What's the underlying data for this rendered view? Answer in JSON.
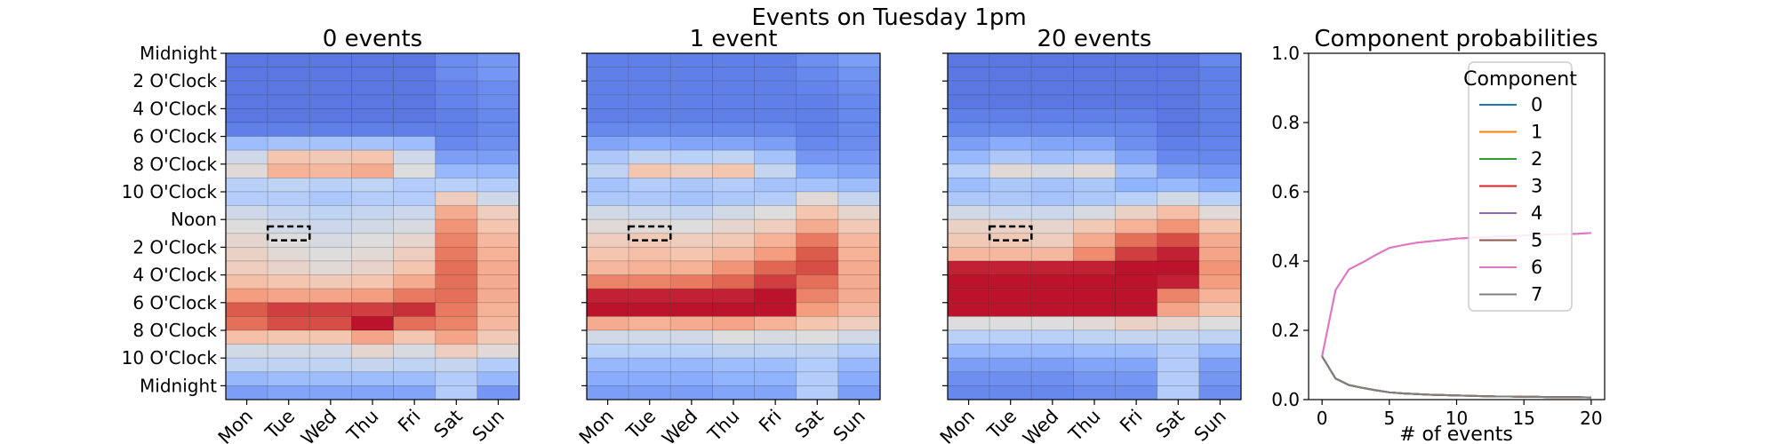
{
  "suptitle": "Events on Tuesday 1pm",
  "chart_data": [
    {
      "type": "heatmap",
      "title": "0 events",
      "x_categories": [
        "Mon",
        "Tue",
        "Wed",
        "Thu",
        "Fri",
        "Sat",
        "Sun"
      ],
      "y_tick_labels": [
        "Midnight",
        "2 O'Clock",
        "4 O'Clock",
        "6 O'Clock",
        "8 O'Clock",
        "10 O'Clock",
        "Noon",
        "2 O'Clock",
        "4 O'Clock",
        "6 O'Clock",
        "8 O'Clock",
        "10 O'Clock",
        "Midnight"
      ],
      "colormap": "coolwarm",
      "highlight": {
        "day": "Tue",
        "hour": 13
      },
      "values": [
        [
          0.1,
          0.1,
          0.1,
          0.1,
          0.1,
          0.15,
          0.18
        ],
        [
          0.1,
          0.1,
          0.1,
          0.1,
          0.1,
          0.15,
          0.18
        ],
        [
          0.1,
          0.1,
          0.1,
          0.1,
          0.1,
          0.13,
          0.15
        ],
        [
          0.1,
          0.1,
          0.1,
          0.1,
          0.1,
          0.13,
          0.15
        ],
        [
          0.1,
          0.1,
          0.1,
          0.1,
          0.1,
          0.12,
          0.14
        ],
        [
          0.12,
          0.12,
          0.12,
          0.12,
          0.12,
          0.12,
          0.14
        ],
        [
          0.3,
          0.32,
          0.32,
          0.32,
          0.3,
          0.14,
          0.16
        ],
        [
          0.45,
          0.62,
          0.6,
          0.62,
          0.45,
          0.2,
          0.2
        ],
        [
          0.52,
          0.68,
          0.66,
          0.7,
          0.5,
          0.28,
          0.28
        ],
        [
          0.38,
          0.4,
          0.38,
          0.4,
          0.36,
          0.38,
          0.36
        ],
        [
          0.36,
          0.36,
          0.34,
          0.36,
          0.36,
          0.58,
          0.45
        ],
        [
          0.45,
          0.42,
          0.4,
          0.42,
          0.44,
          0.7,
          0.58
        ],
        [
          0.5,
          0.46,
          0.44,
          0.46,
          0.48,
          0.76,
          0.62
        ],
        [
          0.54,
          0.5,
          0.48,
          0.5,
          0.54,
          0.8,
          0.66
        ],
        [
          0.56,
          0.52,
          0.5,
          0.52,
          0.58,
          0.82,
          0.68
        ],
        [
          0.58,
          0.55,
          0.52,
          0.55,
          0.62,
          0.84,
          0.7
        ],
        [
          0.64,
          0.62,
          0.6,
          0.62,
          0.7,
          0.84,
          0.7
        ],
        [
          0.74,
          0.72,
          0.72,
          0.74,
          0.82,
          0.84,
          0.7
        ],
        [
          0.88,
          0.92,
          0.92,
          0.92,
          0.94,
          0.82,
          0.68
        ],
        [
          0.84,
          0.9,
          0.9,
          0.98,
          0.84,
          0.8,
          0.66
        ],
        [
          0.64,
          0.62,
          0.62,
          0.72,
          0.62,
          0.72,
          0.6
        ],
        [
          0.46,
          0.46,
          0.46,
          0.54,
          0.48,
          0.58,
          0.52
        ],
        [
          0.4,
          0.4,
          0.4,
          0.42,
          0.4,
          0.42,
          0.36
        ],
        [
          0.28,
          0.3,
          0.3,
          0.3,
          0.3,
          0.36,
          0.28
        ],
        [
          0.2,
          0.22,
          0.22,
          0.22,
          0.22,
          0.36,
          0.18
        ]
      ]
    },
    {
      "type": "heatmap",
      "title": "1 event",
      "x_categories": [
        "Mon",
        "Tue",
        "Wed",
        "Thu",
        "Fri",
        "Sat",
        "Sun"
      ],
      "y_tick_labels": [],
      "colormap": "coolwarm",
      "highlight": {
        "day": "Tue",
        "hour": 13
      },
      "values": [
        [
          0.12,
          0.12,
          0.12,
          0.12,
          0.12,
          0.16,
          0.2
        ],
        [
          0.12,
          0.12,
          0.12,
          0.12,
          0.12,
          0.14,
          0.17
        ],
        [
          0.12,
          0.12,
          0.12,
          0.12,
          0.12,
          0.13,
          0.15
        ],
        [
          0.12,
          0.12,
          0.12,
          0.12,
          0.12,
          0.12,
          0.14
        ],
        [
          0.12,
          0.12,
          0.12,
          0.12,
          0.12,
          0.12,
          0.14
        ],
        [
          0.14,
          0.14,
          0.14,
          0.14,
          0.14,
          0.12,
          0.14
        ],
        [
          0.22,
          0.24,
          0.22,
          0.22,
          0.2,
          0.14,
          0.15
        ],
        [
          0.34,
          0.4,
          0.38,
          0.4,
          0.32,
          0.18,
          0.18
        ],
        [
          0.4,
          0.62,
          0.58,
          0.62,
          0.42,
          0.24,
          0.22
        ],
        [
          0.32,
          0.36,
          0.34,
          0.36,
          0.32,
          0.32,
          0.3
        ],
        [
          0.34,
          0.34,
          0.32,
          0.34,
          0.36,
          0.52,
          0.42
        ],
        [
          0.46,
          0.44,
          0.42,
          0.46,
          0.5,
          0.62,
          0.54
        ],
        [
          0.52,
          0.52,
          0.5,
          0.54,
          0.58,
          0.7,
          0.6
        ],
        [
          0.58,
          0.6,
          0.58,
          0.6,
          0.68,
          0.82,
          0.66
        ],
        [
          0.62,
          0.64,
          0.62,
          0.66,
          0.74,
          0.88,
          0.68
        ],
        [
          0.66,
          0.68,
          0.68,
          0.76,
          0.86,
          0.9,
          0.7
        ],
        [
          0.8,
          0.8,
          0.82,
          0.86,
          0.92,
          0.84,
          0.7
        ],
        [
          0.96,
          0.96,
          0.96,
          0.96,
          0.98,
          0.8,
          0.7
        ],
        [
          0.98,
          0.98,
          0.98,
          0.98,
          0.98,
          0.74,
          0.66
        ],
        [
          0.7,
          0.68,
          0.7,
          0.72,
          0.68,
          0.62,
          0.58
        ],
        [
          0.46,
          0.46,
          0.46,
          0.5,
          0.48,
          0.5,
          0.46
        ],
        [
          0.38,
          0.38,
          0.38,
          0.4,
          0.4,
          0.4,
          0.36
        ],
        [
          0.28,
          0.28,
          0.28,
          0.3,
          0.3,
          0.36,
          0.28
        ],
        [
          0.24,
          0.24,
          0.24,
          0.26,
          0.26,
          0.36,
          0.24
        ],
        [
          0.2,
          0.2,
          0.2,
          0.22,
          0.22,
          0.36,
          0.2
        ]
      ]
    },
    {
      "type": "heatmap",
      "title": "20 events",
      "x_categories": [
        "Mon",
        "Tue",
        "Wed",
        "Thu",
        "Fri",
        "Sat",
        "Sun"
      ],
      "y_tick_labels": [],
      "colormap": "coolwarm",
      "highlight": {
        "day": "Tue",
        "hour": 13
      },
      "values": [
        [
          0.1,
          0.1,
          0.1,
          0.1,
          0.1,
          0.1,
          0.14
        ],
        [
          0.1,
          0.1,
          0.1,
          0.1,
          0.1,
          0.1,
          0.12
        ],
        [
          0.1,
          0.1,
          0.1,
          0.1,
          0.1,
          0.1,
          0.12
        ],
        [
          0.1,
          0.1,
          0.1,
          0.1,
          0.1,
          0.1,
          0.12
        ],
        [
          0.12,
          0.12,
          0.12,
          0.12,
          0.12,
          0.1,
          0.12
        ],
        [
          0.14,
          0.14,
          0.14,
          0.14,
          0.14,
          0.1,
          0.12
        ],
        [
          0.2,
          0.24,
          0.22,
          0.22,
          0.16,
          0.12,
          0.13
        ],
        [
          0.28,
          0.34,
          0.3,
          0.32,
          0.22,
          0.14,
          0.14
        ],
        [
          0.38,
          0.52,
          0.48,
          0.52,
          0.32,
          0.2,
          0.18
        ],
        [
          0.3,
          0.34,
          0.32,
          0.34,
          0.26,
          0.28,
          0.24
        ],
        [
          0.34,
          0.34,
          0.32,
          0.34,
          0.38,
          0.46,
          0.38
        ],
        [
          0.46,
          0.44,
          0.44,
          0.48,
          0.56,
          0.64,
          0.52
        ],
        [
          0.56,
          0.56,
          0.54,
          0.6,
          0.68,
          0.76,
          0.62
        ],
        [
          0.6,
          0.6,
          0.58,
          0.7,
          0.84,
          0.9,
          0.7
        ],
        [
          0.66,
          0.66,
          0.66,
          0.78,
          0.92,
          0.96,
          0.72
        ],
        [
          0.96,
          0.96,
          0.96,
          0.96,
          0.98,
          0.98,
          0.76
        ],
        [
          0.98,
          0.98,
          0.98,
          0.98,
          0.98,
          0.96,
          0.74
        ],
        [
          0.98,
          0.98,
          0.98,
          0.98,
          0.98,
          0.8,
          0.68
        ],
        [
          0.98,
          0.98,
          0.98,
          0.98,
          0.98,
          0.72,
          0.62
        ],
        [
          0.5,
          0.5,
          0.5,
          0.52,
          0.56,
          0.54,
          0.5
        ],
        [
          0.38,
          0.38,
          0.38,
          0.4,
          0.42,
          0.42,
          0.4
        ],
        [
          0.28,
          0.28,
          0.28,
          0.3,
          0.3,
          0.36,
          0.28
        ],
        [
          0.2,
          0.2,
          0.2,
          0.22,
          0.22,
          0.36,
          0.2
        ],
        [
          0.16,
          0.16,
          0.16,
          0.18,
          0.18,
          0.36,
          0.18
        ],
        [
          0.14,
          0.14,
          0.14,
          0.16,
          0.16,
          0.36,
          0.16
        ]
      ]
    },
    {
      "type": "line",
      "title": "Component probabilities",
      "xlabel": "# of events",
      "ylabel": "",
      "xlim": [
        -1,
        21
      ],
      "ylim": [
        0,
        1
      ],
      "x_ticks": [
        0,
        5,
        10,
        15,
        20
      ],
      "y_ticks": [
        0.0,
        0.2,
        0.4,
        0.6,
        0.8,
        1.0
      ],
      "legend": {
        "title": "Component",
        "position": "upper right"
      },
      "x": [
        0,
        1,
        2,
        3,
        4,
        5,
        6,
        7,
        8,
        9,
        10,
        11,
        12,
        13,
        14,
        15,
        16,
        17,
        18,
        19,
        20
      ],
      "series": [
        {
          "name": "0",
          "color": "#1f77b4",
          "values": [
            0.125,
            0.061,
            0.042,
            0.034,
            0.027,
            0.021,
            0.018,
            0.016,
            0.014,
            0.013,
            0.012,
            0.011,
            0.01,
            0.009,
            0.009,
            0.008,
            0.008,
            0.007,
            0.007,
            0.007,
            0.006
          ]
        },
        {
          "name": "1",
          "color": "#ff7f0e",
          "values": [
            0.125,
            0.061,
            0.042,
            0.034,
            0.027,
            0.021,
            0.018,
            0.016,
            0.014,
            0.013,
            0.012,
            0.011,
            0.01,
            0.009,
            0.009,
            0.008,
            0.008,
            0.007,
            0.007,
            0.007,
            0.006
          ]
        },
        {
          "name": "2",
          "color": "#2ca02c",
          "values": [
            0.125,
            0.061,
            0.042,
            0.034,
            0.027,
            0.021,
            0.018,
            0.016,
            0.014,
            0.013,
            0.012,
            0.011,
            0.01,
            0.009,
            0.009,
            0.008,
            0.008,
            0.007,
            0.007,
            0.007,
            0.006
          ]
        },
        {
          "name": "3",
          "color": "#d62728",
          "values": [
            0.125,
            0.061,
            0.042,
            0.034,
            0.027,
            0.021,
            0.018,
            0.016,
            0.014,
            0.013,
            0.012,
            0.011,
            0.01,
            0.009,
            0.009,
            0.008,
            0.008,
            0.007,
            0.007,
            0.007,
            0.006
          ]
        },
        {
          "name": "4",
          "color": "#9467bd",
          "values": [
            0.125,
            0.316,
            0.376,
            0.396,
            0.418,
            0.438,
            0.446,
            0.453,
            0.457,
            0.461,
            0.465,
            0.467,
            0.469,
            0.471,
            0.472,
            0.474,
            0.476,
            0.477,
            0.478,
            0.479,
            0.481
          ]
        },
        {
          "name": "5",
          "color": "#8c564b",
          "values": [
            0.125,
            0.061,
            0.042,
            0.034,
            0.027,
            0.021,
            0.018,
            0.016,
            0.014,
            0.013,
            0.012,
            0.011,
            0.01,
            0.009,
            0.009,
            0.008,
            0.008,
            0.007,
            0.007,
            0.007,
            0.006
          ]
        },
        {
          "name": "6",
          "color": "#e377c2",
          "values": [
            0.125,
            0.316,
            0.376,
            0.396,
            0.418,
            0.438,
            0.446,
            0.453,
            0.457,
            0.461,
            0.465,
            0.467,
            0.469,
            0.471,
            0.472,
            0.474,
            0.476,
            0.477,
            0.478,
            0.479,
            0.481
          ]
        },
        {
          "name": "7",
          "color": "#7f7f7f",
          "values": [
            0.125,
            0.061,
            0.042,
            0.034,
            0.027,
            0.021,
            0.018,
            0.016,
            0.014,
            0.013,
            0.012,
            0.011,
            0.01,
            0.009,
            0.009,
            0.008,
            0.008,
            0.007,
            0.007,
            0.007,
            0.006
          ]
        }
      ]
    }
  ]
}
